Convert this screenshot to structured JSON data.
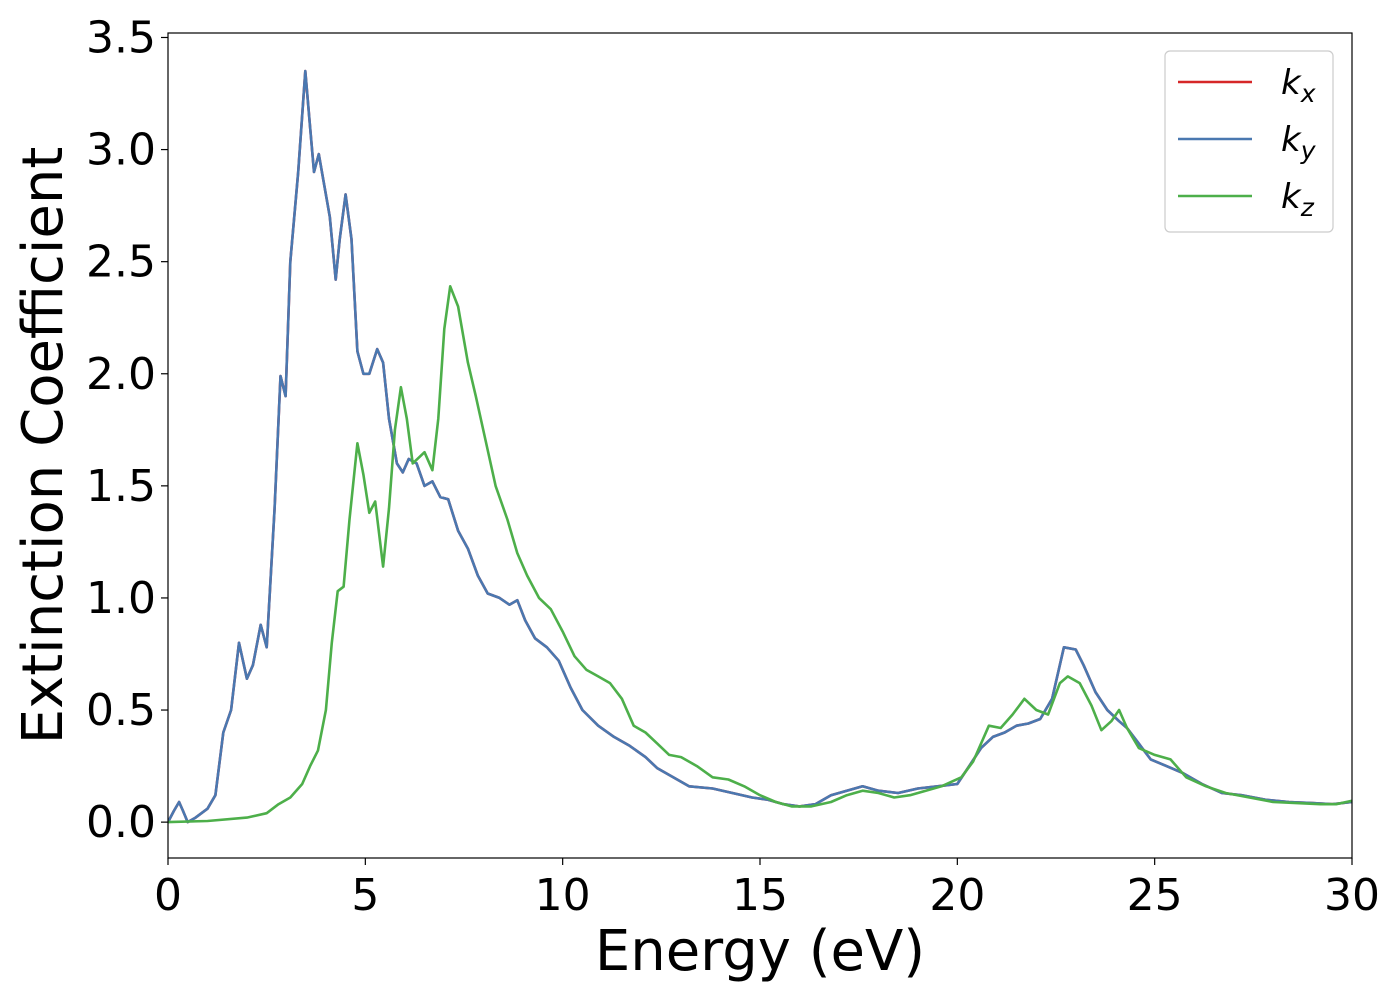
{
  "chart_data": {
    "type": "line",
    "title": "",
    "xlabel": "Energy (eV)",
    "ylabel": "Extinction Coefficient",
    "xlim": [
      0,
      30
    ],
    "ylim": [
      -0.16,
      3.52
    ],
    "xticks": [
      0,
      5,
      10,
      15,
      20,
      25,
      30
    ],
    "xtick_labels": [
      "0",
      "5",
      "10",
      "15",
      "20",
      "25",
      "30"
    ],
    "yticks": [
      0.0,
      0.5,
      1.0,
      1.5,
      2.0,
      2.5,
      3.0,
      3.5
    ],
    "ytick_labels": [
      "0.0",
      "0.5",
      "1.0",
      "1.5",
      "2.0",
      "2.5",
      "3.0",
      "3.5"
    ],
    "grid": false,
    "legend_position": "top-right",
    "series": [
      {
        "name": "k_x",
        "label_base": "k",
        "label_sub": "x",
        "color": "#d62728",
        "points": [
          [
            0,
            0
          ],
          [
            0.15,
            0.05
          ],
          [
            0.28,
            0.09
          ],
          [
            0.38,
            0.05
          ],
          [
            0.5,
            0.0
          ],
          [
            0.7,
            0.02
          ],
          [
            1.0,
            0.06
          ],
          [
            1.2,
            0.12
          ],
          [
            1.4,
            0.4
          ],
          [
            1.6,
            0.5
          ],
          [
            1.8,
            0.8
          ],
          [
            2.0,
            0.64
          ],
          [
            2.15,
            0.7
          ],
          [
            2.35,
            0.88
          ],
          [
            2.5,
            0.78
          ],
          [
            2.7,
            1.4
          ],
          [
            2.85,
            1.99
          ],
          [
            2.98,
            1.9
          ],
          [
            3.1,
            2.5
          ],
          [
            3.3,
            2.9
          ],
          [
            3.48,
            3.35
          ],
          [
            3.6,
            3.1
          ],
          [
            3.7,
            2.9
          ],
          [
            3.82,
            2.98
          ],
          [
            3.95,
            2.85
          ],
          [
            4.1,
            2.7
          ],
          [
            4.25,
            2.42
          ],
          [
            4.35,
            2.6
          ],
          [
            4.5,
            2.8
          ],
          [
            4.65,
            2.6
          ],
          [
            4.8,
            2.1
          ],
          [
            4.95,
            2.0
          ],
          [
            5.1,
            2.0
          ],
          [
            5.3,
            2.11
          ],
          [
            5.45,
            2.05
          ],
          [
            5.6,
            1.8
          ],
          [
            5.8,
            1.6
          ],
          [
            5.95,
            1.56
          ],
          [
            6.1,
            1.62
          ],
          [
            6.3,
            1.6
          ],
          [
            6.5,
            1.5
          ],
          [
            6.7,
            1.52
          ],
          [
            6.9,
            1.45
          ],
          [
            7.1,
            1.44
          ],
          [
            7.35,
            1.3
          ],
          [
            7.6,
            1.22
          ],
          [
            7.85,
            1.1
          ],
          [
            8.1,
            1.02
          ],
          [
            8.4,
            1.0
          ],
          [
            8.65,
            0.97
          ],
          [
            8.85,
            0.99
          ],
          [
            9.05,
            0.9
          ],
          [
            9.3,
            0.82
          ],
          [
            9.6,
            0.78
          ],
          [
            9.9,
            0.72
          ],
          [
            10.2,
            0.6
          ],
          [
            10.5,
            0.5
          ],
          [
            10.9,
            0.43
          ],
          [
            11.3,
            0.38
          ],
          [
            11.7,
            0.34
          ],
          [
            12.1,
            0.29
          ],
          [
            12.4,
            0.24
          ],
          [
            12.8,
            0.2
          ],
          [
            13.2,
            0.16
          ],
          [
            13.8,
            0.15
          ],
          [
            14.3,
            0.13
          ],
          [
            14.8,
            0.11
          ],
          [
            15.2,
            0.1
          ],
          [
            15.6,
            0.08
          ],
          [
            16.0,
            0.07
          ],
          [
            16.4,
            0.08
          ],
          [
            16.8,
            0.12
          ],
          [
            17.2,
            0.14
          ],
          [
            17.6,
            0.16
          ],
          [
            18.0,
            0.14
          ],
          [
            18.5,
            0.13
          ],
          [
            19.0,
            0.15
          ],
          [
            19.5,
            0.16
          ],
          [
            20.0,
            0.17
          ],
          [
            20.3,
            0.25
          ],
          [
            20.6,
            0.33
          ],
          [
            20.9,
            0.38
          ],
          [
            21.2,
            0.4
          ],
          [
            21.5,
            0.43
          ],
          [
            21.8,
            0.44
          ],
          [
            22.1,
            0.46
          ],
          [
            22.4,
            0.55
          ],
          [
            22.7,
            0.78
          ],
          [
            23.0,
            0.77
          ],
          [
            23.2,
            0.7
          ],
          [
            23.5,
            0.58
          ],
          [
            23.8,
            0.5
          ],
          [
            24.1,
            0.45
          ],
          [
            24.3,
            0.42
          ],
          [
            24.6,
            0.35
          ],
          [
            24.9,
            0.28
          ],
          [
            25.3,
            0.25
          ],
          [
            25.7,
            0.22
          ],
          [
            26.2,
            0.17
          ],
          [
            26.7,
            0.13
          ],
          [
            27.2,
            0.12
          ],
          [
            27.8,
            0.1
          ],
          [
            28.4,
            0.09
          ],
          [
            29.0,
            0.085
          ],
          [
            29.5,
            0.08
          ],
          [
            30.0,
            0.09
          ]
        ]
      },
      {
        "name": "k_y",
        "label_base": "k",
        "label_sub": "y",
        "color": "#4a78b0",
        "points": [
          [
            0,
            0
          ],
          [
            0.15,
            0.05
          ],
          [
            0.28,
            0.09
          ],
          [
            0.38,
            0.05
          ],
          [
            0.5,
            0.0
          ],
          [
            0.7,
            0.02
          ],
          [
            1.0,
            0.06
          ],
          [
            1.2,
            0.12
          ],
          [
            1.4,
            0.4
          ],
          [
            1.6,
            0.5
          ],
          [
            1.8,
            0.8
          ],
          [
            2.0,
            0.64
          ],
          [
            2.15,
            0.7
          ],
          [
            2.35,
            0.88
          ],
          [
            2.5,
            0.78
          ],
          [
            2.7,
            1.4
          ],
          [
            2.85,
            1.99
          ],
          [
            2.98,
            1.9
          ],
          [
            3.1,
            2.5
          ],
          [
            3.3,
            2.9
          ],
          [
            3.48,
            3.35
          ],
          [
            3.6,
            3.1
          ],
          [
            3.7,
            2.9
          ],
          [
            3.82,
            2.98
          ],
          [
            3.95,
            2.85
          ],
          [
            4.1,
            2.7
          ],
          [
            4.25,
            2.42
          ],
          [
            4.35,
            2.6
          ],
          [
            4.5,
            2.8
          ],
          [
            4.65,
            2.6
          ],
          [
            4.8,
            2.1
          ],
          [
            4.95,
            2.0
          ],
          [
            5.1,
            2.0
          ],
          [
            5.3,
            2.11
          ],
          [
            5.45,
            2.05
          ],
          [
            5.6,
            1.8
          ],
          [
            5.8,
            1.6
          ],
          [
            5.95,
            1.56
          ],
          [
            6.1,
            1.62
          ],
          [
            6.3,
            1.6
          ],
          [
            6.5,
            1.5
          ],
          [
            6.7,
            1.52
          ],
          [
            6.9,
            1.45
          ],
          [
            7.1,
            1.44
          ],
          [
            7.35,
            1.3
          ],
          [
            7.6,
            1.22
          ],
          [
            7.85,
            1.1
          ],
          [
            8.1,
            1.02
          ],
          [
            8.4,
            1.0
          ],
          [
            8.65,
            0.97
          ],
          [
            8.85,
            0.99
          ],
          [
            9.05,
            0.9
          ],
          [
            9.3,
            0.82
          ],
          [
            9.6,
            0.78
          ],
          [
            9.9,
            0.72
          ],
          [
            10.2,
            0.6
          ],
          [
            10.5,
            0.5
          ],
          [
            10.9,
            0.43
          ],
          [
            11.3,
            0.38
          ],
          [
            11.7,
            0.34
          ],
          [
            12.1,
            0.29
          ],
          [
            12.4,
            0.24
          ],
          [
            12.8,
            0.2
          ],
          [
            13.2,
            0.16
          ],
          [
            13.8,
            0.15
          ],
          [
            14.3,
            0.13
          ],
          [
            14.8,
            0.11
          ],
          [
            15.2,
            0.1
          ],
          [
            15.6,
            0.08
          ],
          [
            16.0,
            0.07
          ],
          [
            16.4,
            0.08
          ],
          [
            16.8,
            0.12
          ],
          [
            17.2,
            0.14
          ],
          [
            17.6,
            0.16
          ],
          [
            18.0,
            0.14
          ],
          [
            18.5,
            0.13
          ],
          [
            19.0,
            0.15
          ],
          [
            19.5,
            0.16
          ],
          [
            20.0,
            0.17
          ],
          [
            20.3,
            0.25
          ],
          [
            20.6,
            0.33
          ],
          [
            20.9,
            0.38
          ],
          [
            21.2,
            0.4
          ],
          [
            21.5,
            0.43
          ],
          [
            21.8,
            0.44
          ],
          [
            22.1,
            0.46
          ],
          [
            22.4,
            0.55
          ],
          [
            22.7,
            0.78
          ],
          [
            23.0,
            0.77
          ],
          [
            23.2,
            0.7
          ],
          [
            23.5,
            0.58
          ],
          [
            23.8,
            0.5
          ],
          [
            24.1,
            0.45
          ],
          [
            24.3,
            0.42
          ],
          [
            24.6,
            0.35
          ],
          [
            24.9,
            0.28
          ],
          [
            25.3,
            0.25
          ],
          [
            25.7,
            0.22
          ],
          [
            26.2,
            0.17
          ],
          [
            26.7,
            0.13
          ],
          [
            27.2,
            0.12
          ],
          [
            27.8,
            0.1
          ],
          [
            28.4,
            0.09
          ],
          [
            29.0,
            0.085
          ],
          [
            29.5,
            0.08
          ],
          [
            30.0,
            0.09
          ]
        ]
      },
      {
        "name": "k_z",
        "label_base": "k",
        "label_sub": "z",
        "color": "#4daf4a",
        "points": [
          [
            0,
            0
          ],
          [
            1.0,
            0.005
          ],
          [
            2.0,
            0.02
          ],
          [
            2.5,
            0.04
          ],
          [
            2.8,
            0.08
          ],
          [
            3.1,
            0.11
          ],
          [
            3.4,
            0.17
          ],
          [
            3.6,
            0.25
          ],
          [
            3.8,
            0.32
          ],
          [
            4.0,
            0.5
          ],
          [
            4.15,
            0.8
          ],
          [
            4.3,
            1.03
          ],
          [
            4.45,
            1.05
          ],
          [
            4.6,
            1.35
          ],
          [
            4.8,
            1.69
          ],
          [
            4.95,
            1.55
          ],
          [
            5.1,
            1.38
          ],
          [
            5.25,
            1.43
          ],
          [
            5.45,
            1.14
          ],
          [
            5.6,
            1.4
          ],
          [
            5.75,
            1.75
          ],
          [
            5.9,
            1.94
          ],
          [
            6.05,
            1.8
          ],
          [
            6.2,
            1.6
          ],
          [
            6.5,
            1.65
          ],
          [
            6.7,
            1.57
          ],
          [
            6.85,
            1.8
          ],
          [
            7.0,
            2.2
          ],
          [
            7.15,
            2.39
          ],
          [
            7.35,
            2.3
          ],
          [
            7.6,
            2.05
          ],
          [
            7.8,
            1.9
          ],
          [
            8.05,
            1.7
          ],
          [
            8.3,
            1.5
          ],
          [
            8.6,
            1.35
          ],
          [
            8.85,
            1.2
          ],
          [
            9.1,
            1.1
          ],
          [
            9.4,
            1.0
          ],
          [
            9.7,
            0.95
          ],
          [
            10.0,
            0.85
          ],
          [
            10.3,
            0.74
          ],
          [
            10.6,
            0.68
          ],
          [
            10.9,
            0.65
          ],
          [
            11.2,
            0.62
          ],
          [
            11.5,
            0.55
          ],
          [
            11.8,
            0.43
          ],
          [
            12.1,
            0.4
          ],
          [
            12.4,
            0.35
          ],
          [
            12.7,
            0.3
          ],
          [
            13.0,
            0.29
          ],
          [
            13.4,
            0.25
          ],
          [
            13.8,
            0.2
          ],
          [
            14.2,
            0.19
          ],
          [
            14.6,
            0.16
          ],
          [
            15.0,
            0.12
          ],
          [
            15.4,
            0.09
          ],
          [
            15.8,
            0.07
          ],
          [
            16.3,
            0.07
          ],
          [
            16.8,
            0.09
          ],
          [
            17.2,
            0.12
          ],
          [
            17.6,
            0.14
          ],
          [
            18.0,
            0.13
          ],
          [
            18.4,
            0.11
          ],
          [
            18.8,
            0.12
          ],
          [
            19.2,
            0.14
          ],
          [
            19.6,
            0.16
          ],
          [
            20.1,
            0.2
          ],
          [
            20.4,
            0.27
          ],
          [
            20.8,
            0.43
          ],
          [
            21.1,
            0.42
          ],
          [
            21.4,
            0.48
          ],
          [
            21.7,
            0.55
          ],
          [
            22.0,
            0.5
          ],
          [
            22.3,
            0.48
          ],
          [
            22.6,
            0.62
          ],
          [
            22.8,
            0.65
          ],
          [
            23.1,
            0.62
          ],
          [
            23.4,
            0.52
          ],
          [
            23.65,
            0.41
          ],
          [
            23.9,
            0.45
          ],
          [
            24.1,
            0.5
          ],
          [
            24.3,
            0.42
          ],
          [
            24.6,
            0.33
          ],
          [
            25.0,
            0.3
          ],
          [
            25.4,
            0.28
          ],
          [
            25.8,
            0.2
          ],
          [
            26.3,
            0.16
          ],
          [
            26.8,
            0.13
          ],
          [
            27.4,
            0.11
          ],
          [
            28.0,
            0.09
          ],
          [
            28.6,
            0.085
          ],
          [
            29.2,
            0.08
          ],
          [
            29.6,
            0.08
          ],
          [
            30.0,
            0.095
          ]
        ]
      }
    ]
  }
}
